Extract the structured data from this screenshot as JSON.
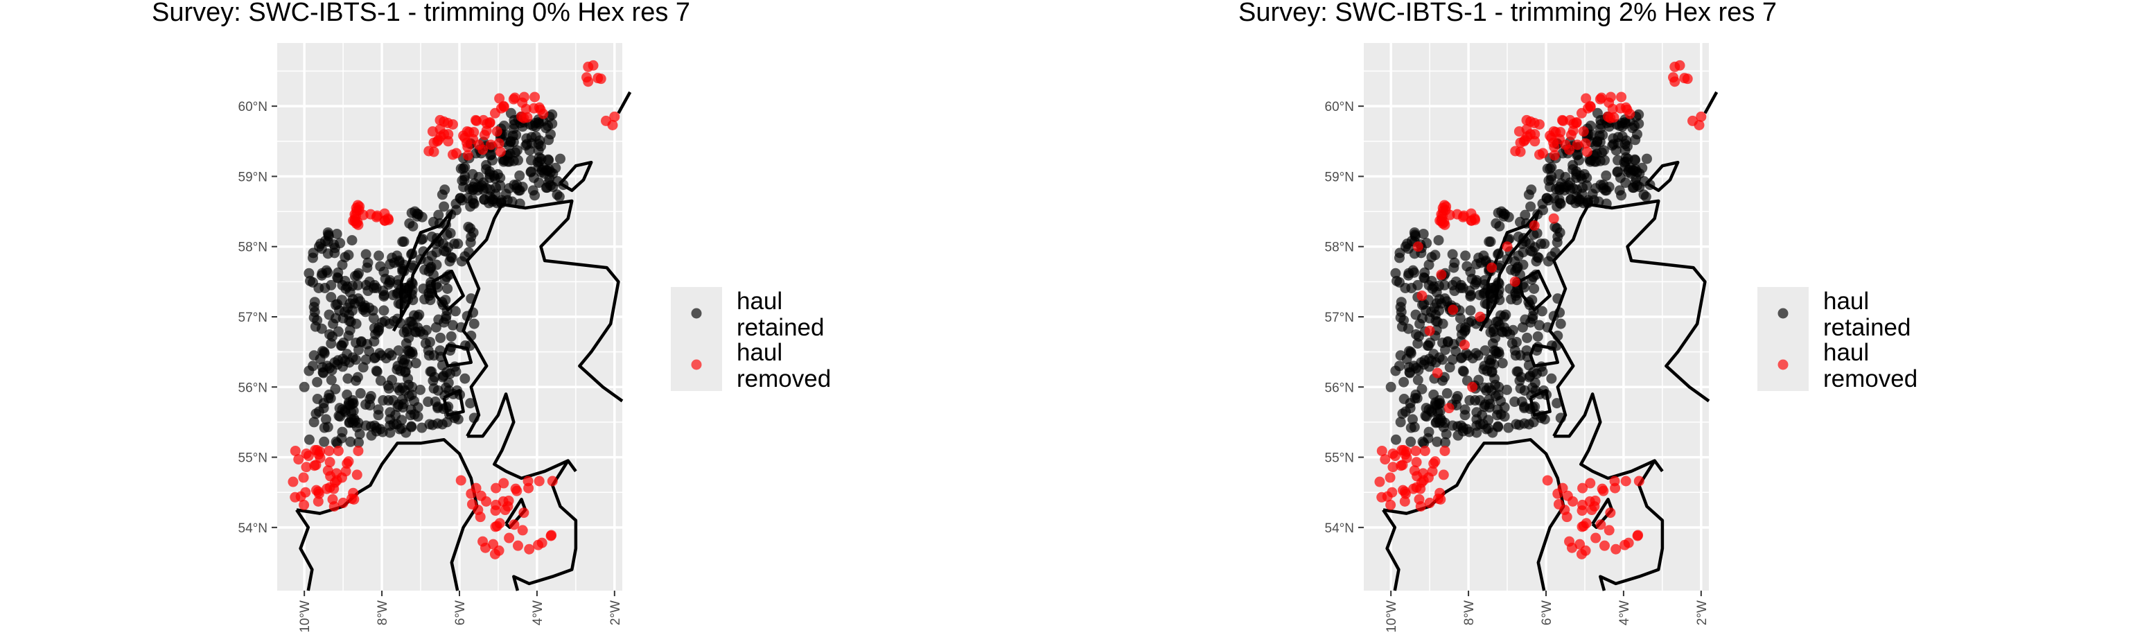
{
  "colors": {
    "retained": "#000000",
    "removed": "#ff0000",
    "panel_bg": "#ebebeb",
    "grid": "#ffffff",
    "coast": "#000000",
    "text": "#000000",
    "axis_text": "#4d4d4d"
  },
  "chart_data": [
    {
      "type": "scatter",
      "title": "Survey: SWC-IBTS-1 - trimming 0% Hex res 7",
      "xlabel": "",
      "ylabel": "",
      "xlim": [
        -10.7,
        -1.8
      ],
      "ylim": [
        53.1,
        60.9
      ],
      "x_ticks": [
        -10,
        -8,
        -6,
        -4,
        -2
      ],
      "x_tick_labels": [
        "10°W",
        "8°W",
        "6°W",
        "4°W",
        "2°W"
      ],
      "y_ticks": [
        54,
        55,
        56,
        57,
        58,
        59,
        60
      ],
      "y_tick_labels": [
        "54°N",
        "55°N",
        "56°N",
        "57°N",
        "58°N",
        "59°N",
        "60°N"
      ],
      "grid": true,
      "legend_position": "right",
      "legend": [
        {
          "label_lines": [
            "haul",
            "retained"
          ],
          "color": "#000000"
        },
        {
          "label_lines": [
            "haul",
            "removed"
          ],
          "color": "#ff0000"
        }
      ],
      "removed_extra": [],
      "series": [
        {
          "name": "haul retained",
          "data": []
        },
        {
          "name": "haul removed",
          "data": []
        }
      ]
    },
    {
      "type": "scatter",
      "title": "Survey: SWC-IBTS-1 - trimming 2% Hex res 7",
      "xlabel": "",
      "ylabel": "",
      "xlim": [
        -10.7,
        -1.8
      ],
      "ylim": [
        53.1,
        60.9
      ],
      "x_ticks": [
        -10,
        -8,
        -6,
        -4,
        -2
      ],
      "x_tick_labels": [
        "10°W",
        "8°W",
        "6°W",
        "4°W",
        "2°W"
      ],
      "y_ticks": [
        54,
        55,
        56,
        57,
        58,
        59,
        60
      ],
      "y_tick_labels": [
        "54°N",
        "55°N",
        "56°N",
        "57°N",
        "58°N",
        "59°N",
        "60°N"
      ],
      "grid": true,
      "legend_position": "right",
      "legend": [
        {
          "label_lines": [
            "haul",
            "retained"
          ],
          "color": "#000000"
        },
        {
          "label_lines": [
            "haul",
            "removed"
          ],
          "color": "#ff0000"
        }
      ],
      "removed_extra": [
        [
          -9.2,
          57.3
        ],
        [
          -9.0,
          56.8
        ],
        [
          -8.7,
          57.6
        ],
        [
          -8.4,
          57.1
        ],
        [
          -8.1,
          56.6
        ],
        [
          -7.7,
          57.0
        ],
        [
          -7.4,
          57.7
        ],
        [
          -7.0,
          58.0
        ],
        [
          -8.8,
          56.2
        ],
        [
          -8.5,
          55.7
        ],
        [
          -6.8,
          57.5
        ],
        [
          -6.3,
          58.3
        ],
        [
          -9.3,
          58.0
        ],
        [
          -5.8,
          58.4
        ],
        [
          -7.9,
          56.0
        ]
      ],
      "series": [
        {
          "name": "haul retained",
          "data": []
        },
        {
          "name": "haul removed",
          "data": []
        }
      ]
    }
  ]
}
